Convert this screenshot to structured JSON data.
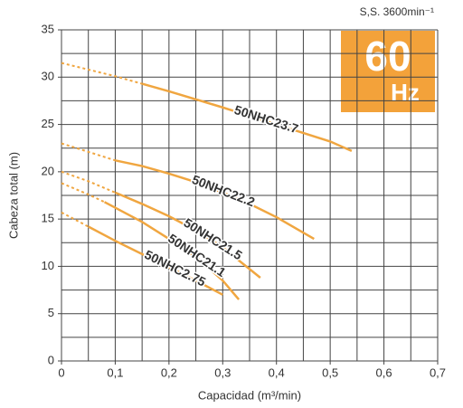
{
  "chart_data": {
    "type": "line",
    "subtitle": "S,S. 3600min⁻¹",
    "badge": {
      "value": "60",
      "unit": "Hz",
      "color": "#f3a23a"
    },
    "xlabel": "Capacidad (m³/min)",
    "ylabel": "Cabeza total (m)",
    "xlim": [
      0,
      0.7
    ],
    "ylim": [
      0,
      35
    ],
    "xticks": [
      0,
      {
        "value": 0.1,
        "label": "0,1"
      },
      {
        "value": 0.2,
        "label": "0,2"
      },
      {
        "value": 0.3,
        "label": "0,3"
      },
      {
        "value": 0.4,
        "label": "0,4"
      },
      {
        "value": 0.5,
        "label": "0,5"
      },
      {
        "value": 0.6,
        "label": "0,6"
      },
      {
        "value": 0.7,
        "label": "0,7"
      }
    ],
    "yticks": [
      0,
      5,
      10,
      15,
      20,
      25,
      30,
      35
    ],
    "grid_x": [
      0,
      0.05,
      0.1,
      0.15,
      0.2,
      0.25,
      0.3,
      0.35,
      0.4,
      0.45,
      0.5,
      0.55,
      0.6,
      0.65,
      0.7
    ],
    "grid_y": [
      0,
      2.5,
      5,
      7.5,
      10,
      12.5,
      15,
      17.5,
      20,
      22.5,
      25,
      27.5,
      30,
      32.5,
      35
    ],
    "series": [
      {
        "name": "50NHC23.7",
        "color": "#f0a640",
        "dotted": {
          "x": [
            0,
            0.05,
            0.1,
            0.15
          ],
          "values": [
            31.5,
            30.8,
            30.1,
            29.3
          ]
        },
        "solid": {
          "x": [
            0.15,
            0.2,
            0.3,
            0.4,
            0.5,
            0.54
          ],
          "values": [
            29.3,
            28.5,
            26.8,
            25,
            23.2,
            22.2
          ]
        }
      },
      {
        "name": "50NHC22.2",
        "color": "#f0a640",
        "dotted": {
          "x": [
            0,
            0.05,
            0.1
          ],
          "values": [
            23,
            22.1,
            21.2
          ]
        },
        "solid": {
          "x": [
            0.1,
            0.15,
            0.2,
            0.25,
            0.3,
            0.35,
            0.4,
            0.47
          ],
          "values": [
            21.2,
            20.6,
            19.8,
            18.9,
            17.8,
            16.6,
            15.2,
            12.9
          ]
        }
      },
      {
        "name": "50NHC21.5",
        "color": "#f0a640",
        "dotted": {
          "x": [
            0,
            0.05,
            0.1
          ],
          "values": [
            20,
            19,
            17.8
          ]
        },
        "solid": {
          "x": [
            0.1,
            0.15,
            0.2,
            0.25,
            0.3,
            0.37
          ],
          "values": [
            17.8,
            16.6,
            15.3,
            13.8,
            12,
            8.8
          ]
        }
      },
      {
        "name": "50NHC21.1",
        "color": "#f0a640",
        "dotted": {
          "x": [
            0,
            0.05,
            0.08
          ],
          "values": [
            18.8,
            17.6,
            16.8
          ]
        },
        "solid": {
          "x": [
            0.08,
            0.15,
            0.2,
            0.25,
            0.3,
            0.33
          ],
          "values": [
            16.8,
            14.7,
            12.9,
            11,
            8.5,
            6.5
          ]
        }
      },
      {
        "name": "50NHC2.75",
        "color": "#f0a640",
        "dotted": {
          "x": [
            0,
            0.05
          ],
          "values": [
            15.7,
            14.2
          ]
        },
        "solid": {
          "x": [
            0.05,
            0.1,
            0.15,
            0.2,
            0.25,
            0.3
          ],
          "values": [
            14.2,
            12.7,
            11.3,
            9.9,
            8.5,
            7
          ]
        }
      }
    ]
  }
}
